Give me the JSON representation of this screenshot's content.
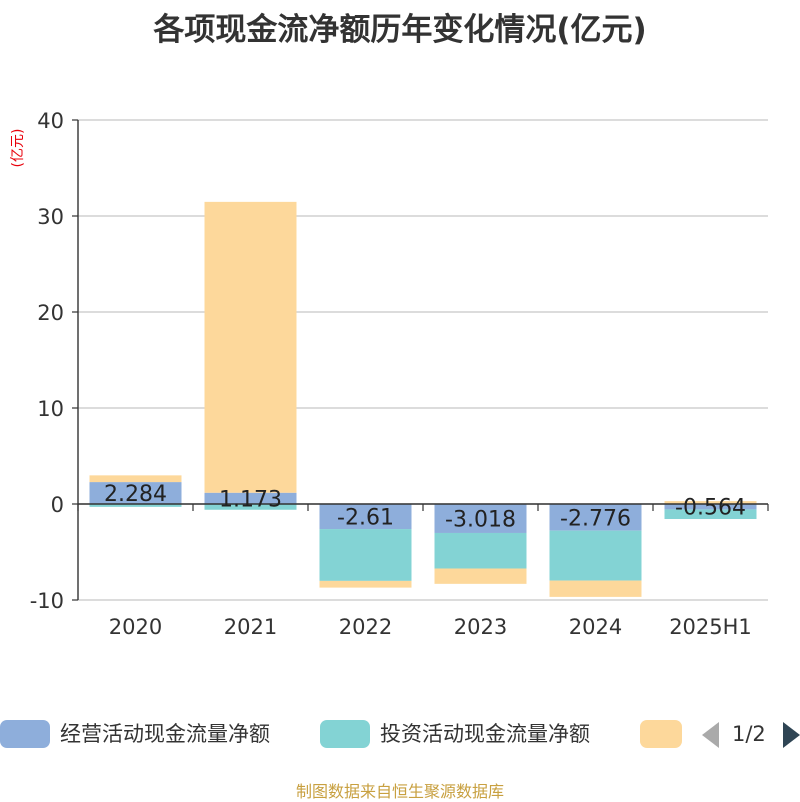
{
  "chart_data": {
    "type": "bar",
    "stacked": true,
    "title": "各项现金流净额历年变化情况(亿元)",
    "ylabel": "(亿元)",
    "categories": [
      "2020",
      "2021",
      "2022",
      "2023",
      "2024",
      "2025H1"
    ],
    "ylim": [
      -10,
      40
    ],
    "yticks": [
      -10,
      0,
      10,
      20,
      30,
      40
    ],
    "grid": true,
    "series": [
      {
        "name": "经营活动现金流量净额",
        "color": "#8eaedb",
        "values": [
          2.284,
          1.173,
          -2.61,
          -3.018,
          -2.776,
          -0.564
        ],
        "labels": [
          "2.284",
          "1.173",
          "-2.61",
          "-3.018",
          "-2.776",
          "-0.564"
        ]
      },
      {
        "name": "投资活动现金流量净额",
        "color": "#83d3d4",
        "values": [
          -0.3,
          -0.6,
          -5.4,
          -3.7,
          -5.2,
          -1.0
        ]
      },
      {
        "name": "",
        "color": "#fdd89b",
        "values": [
          0.7,
          30.3,
          -0.7,
          -1.6,
          -1.7,
          0.3
        ]
      }
    ]
  },
  "legend": {
    "page": "1/2"
  },
  "source": "制图数据来自恒生聚源数据库"
}
